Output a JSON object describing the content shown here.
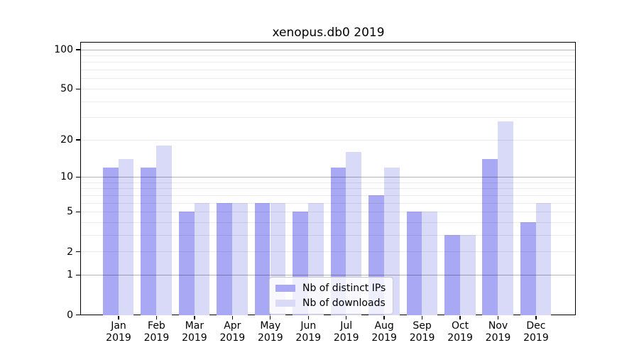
{
  "chart_data": {
    "type": "bar",
    "title": "xenopus.db0 2019",
    "categories": [
      {
        "month": "Jan",
        "year": "2019"
      },
      {
        "month": "Feb",
        "year": "2019"
      },
      {
        "month": "Mar",
        "year": "2019"
      },
      {
        "month": "Apr",
        "year": "2019"
      },
      {
        "month": "May",
        "year": "2019"
      },
      {
        "month": "Jun",
        "year": "2019"
      },
      {
        "month": "Jul",
        "year": "2019"
      },
      {
        "month": "Aug",
        "year": "2019"
      },
      {
        "month": "Sep",
        "year": "2019"
      },
      {
        "month": "Oct",
        "year": "2019"
      },
      {
        "month": "Nov",
        "year": "2019"
      },
      {
        "month": "Dec",
        "year": "2019"
      }
    ],
    "series": [
      {
        "name": "Nb of distinct IPs",
        "color": "#a8a8f5",
        "values": [
          12,
          12,
          5,
          6,
          6,
          5,
          12,
          7,
          5,
          3,
          14,
          4
        ]
      },
      {
        "name": "Nb of downloads",
        "color": "#d9d9f8",
        "values": [
          14,
          18,
          6,
          6,
          6,
          6,
          16,
          12,
          5,
          3,
          28,
          6
        ]
      }
    ],
    "y_axis": {
      "scale": "log1p",
      "tick_values": [
        0,
        1,
        2,
        5,
        10,
        20,
        50,
        100
      ],
      "tick_labels": [
        "0",
        "1",
        "2",
        "5",
        "10",
        "20",
        "50",
        "100"
      ],
      "major_grid_values": [
        1,
        10,
        100
      ],
      "minor_grid_values": [
        2,
        3,
        4,
        5,
        6,
        7,
        8,
        9,
        20,
        30,
        40,
        50,
        60,
        70,
        80,
        90
      ],
      "ylim": [
        0,
        114
      ],
      "grid": true
    },
    "legend_position": "lower center"
  }
}
